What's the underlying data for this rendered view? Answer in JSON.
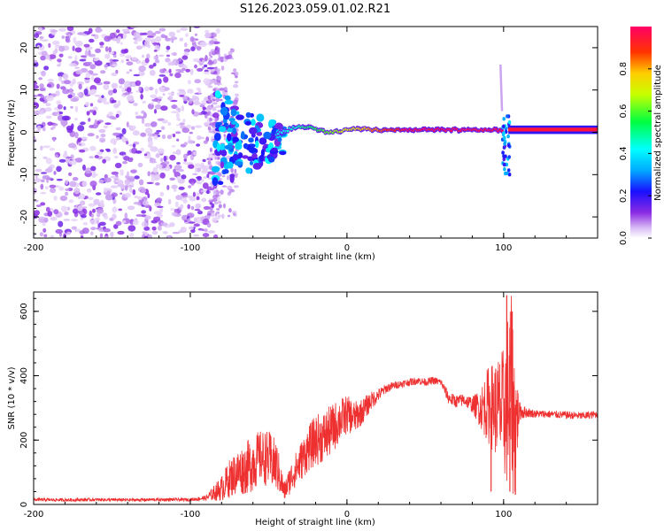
{
  "title": "S126.2023.059.01.02.R21",
  "colors": {
    "snr_line": "#ee3030",
    "spectrogram_noise": "#8a2be2",
    "frame": "#000000"
  },
  "chart_data": [
    {
      "type": "heatmap",
      "xlabel": "Height of straight line (km)",
      "ylabel": "Frequency (Hz)",
      "xlim": [
        -200,
        160
      ],
      "ylim": [
        -25,
        25
      ],
      "xticks": [
        -200,
        -100,
        0,
        100
      ],
      "yticks": [
        -20,
        -10,
        0,
        10,
        20
      ],
      "colorbar": {
        "label": "Normalized spectral amplitude",
        "range": [
          0,
          1
        ],
        "ticks": [
          "0.0",
          "0.2",
          "0.4",
          "0.6",
          "0.8"
        ],
        "colormap": "rainbow (violet to red)"
      },
      "regions": [
        {
          "x": [
            -200,
            -85
          ],
          "description": "scattered noise",
          "amplitude": 0.15
        },
        {
          "x": [
            -85,
            -40
          ],
          "freq": [
            -12,
            8
          ],
          "description": "broad low-amplitude blobs",
          "amplitude": 0.3
        },
        {
          "x": [
            -40,
            100
          ],
          "freq": [
            0,
            2
          ],
          "description": "narrow carrier line",
          "amplitude": 0.9
        },
        {
          "x": [
            100,
            103
          ],
          "freq": [
            -10,
            16
          ],
          "description": "vertical disturbance",
          "amplitude": 0.4
        },
        {
          "x": [
            103,
            160
          ],
          "freq": [
            0,
            1
          ],
          "description": "narrow carrier line",
          "amplitude": 1.0
        }
      ]
    },
    {
      "type": "line",
      "xlabel": "Height of straight line (km)",
      "ylabel": "SNR (10 * v/v)",
      "xlim": [
        -200,
        160
      ],
      "ylim": [
        0,
        660
      ],
      "xticks": [
        -200,
        -100,
        0,
        100
      ],
      "yticks": [
        0,
        200,
        400,
        600
      ],
      "series": [
        {
          "x": [
            -200,
            -180,
            -160,
            -140,
            -120,
            -100,
            -90,
            -80,
            -75,
            -70,
            -65,
            -60,
            -55,
            -50,
            -45,
            -40,
            -35,
            -30,
            -25,
            -20,
            -15,
            -10,
            -5,
            0,
            5,
            10,
            15,
            20,
            25,
            30,
            35,
            40,
            45,
            50,
            55,
            60,
            65,
            70,
            75,
            80,
            85,
            90,
            95,
            100,
            103,
            105,
            107,
            110,
            115,
            120,
            130,
            140,
            150,
            160
          ],
          "values": [
            15,
            14,
            15,
            14,
            15,
            15,
            20,
            50,
            80,
            100,
            110,
            130,
            150,
            140,
            120,
            40,
            90,
            130,
            170,
            200,
            210,
            230,
            260,
            280,
            270,
            290,
            320,
            340,
            360,
            370,
            375,
            380,
            385,
            380,
            385,
            380,
            330,
            320,
            325,
            310,
            300,
            310,
            300,
            290,
            330,
            350,
            250,
            290,
            285,
            282,
            280,
            278,
            275,
            280
          ],
          "spread": [
            5,
            5,
            5,
            5,
            5,
            5,
            8,
            40,
            60,
            70,
            80,
            90,
            80,
            90,
            80,
            30,
            50,
            60,
            70,
            80,
            80,
            80,
            70,
            60,
            50,
            40,
            30,
            20,
            15,
            12,
            12,
            12,
            12,
            12,
            12,
            12,
            20,
            20,
            20,
            25,
            60,
            120,
            150,
            200,
            300,
            300,
            250,
            30,
            15,
            12,
            12,
            12,
            12,
            12
          ]
        }
      ]
    }
  ]
}
